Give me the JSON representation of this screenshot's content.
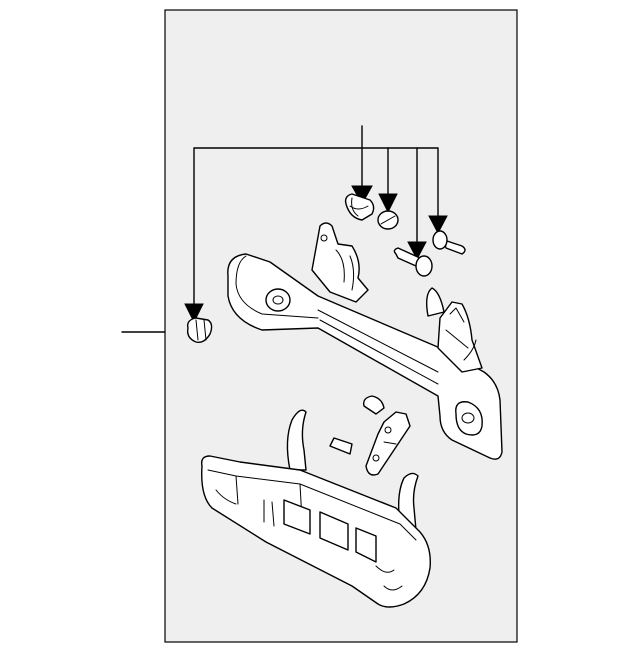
{
  "diagram": {
    "panel_fill": "#efefef",
    "line_color": "#000000"
  }
}
